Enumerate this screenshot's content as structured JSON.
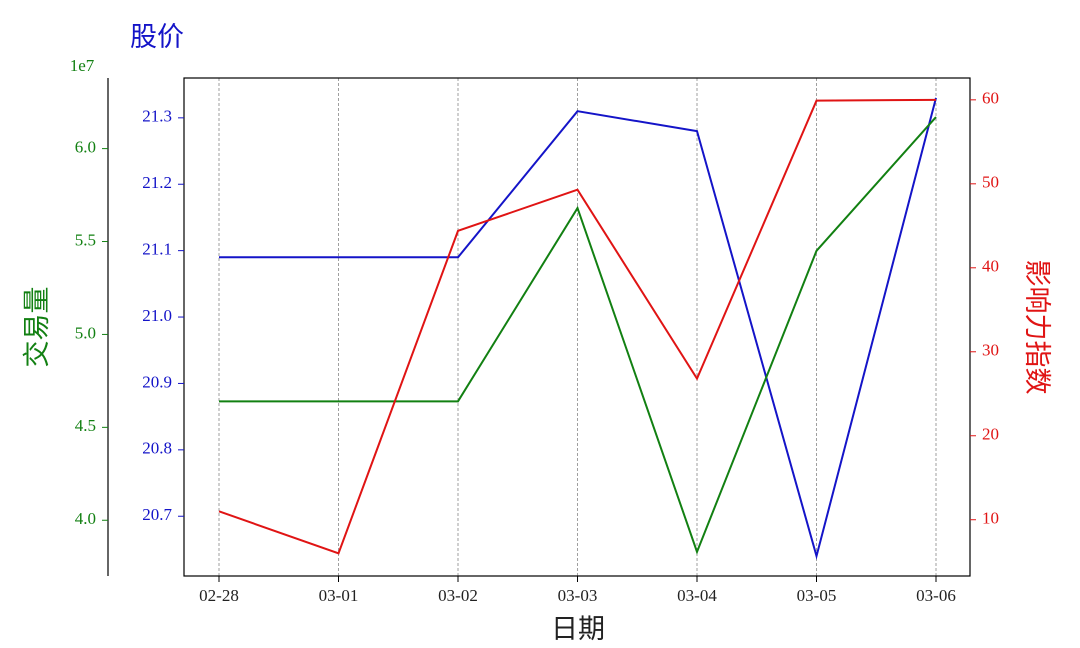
{
  "chart_data": {
    "type": "line",
    "xlabel": "日期",
    "categories": [
      "02-28",
      "03-01",
      "03-02",
      "03-03",
      "03-04",
      "03-05",
      "03-06"
    ],
    "series": [
      {
        "name": "股价",
        "color": "#1414c8",
        "axis": "y",
        "values": [
          21.09,
          21.09,
          21.09,
          21.31,
          21.28,
          20.64,
          21.33
        ]
      },
      {
        "name": "交易量",
        "color": "#128012",
        "axis": "y2",
        "values": [
          4.64,
          4.64,
          4.64,
          5.68,
          3.83,
          5.45,
          6.17
        ]
      },
      {
        "name": "影响力指数",
        "color": "#e01414",
        "axis": "y3",
        "values": [
          11,
          6,
          44.4,
          49.3,
          26.8,
          59.9,
          60
        ]
      }
    ],
    "ylim": [
      20.61,
      21.36
    ],
    "yticks": [
      20.7,
      20.8,
      20.9,
      {
        "value": 21,
        "label": "21.0"
      },
      21.1,
      21.2,
      21.3
    ],
    "y2lim": [
      3.7,
      6.38
    ],
    "y2ticks": [
      {
        "value": 4,
        "label": "4.0"
      },
      4.5,
      {
        "value": 5,
        "label": "5.0"
      },
      5.5,
      {
        "value": 6,
        "label": "6.0"
      }
    ],
    "y2_offset_label": "1e7",
    "y3lim": [
      3.3,
      62.6
    ],
    "y3ticks": [
      10,
      20,
      30,
      40,
      50,
      60
    ],
    "grid": true
  }
}
